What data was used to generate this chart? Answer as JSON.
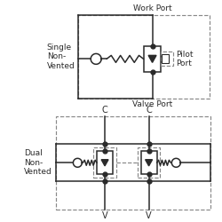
{
  "bg_color": "#ffffff",
  "line_color": "#2a2a2a",
  "dashed_color": "#888888",
  "title_work": "Work Port",
  "title_valve": "Valve Port",
  "label_pilot": "Pilot\nPort",
  "label_single": "Single\nNon-\nVented",
  "label_dual": "Dual\nNon-\nVented",
  "label_C1": "C",
  "label_C2": "C",
  "label_V1": "V",
  "label_V2": "V",
  "fig_w": 2.5,
  "fig_h": 2.5,
  "dpi": 100
}
